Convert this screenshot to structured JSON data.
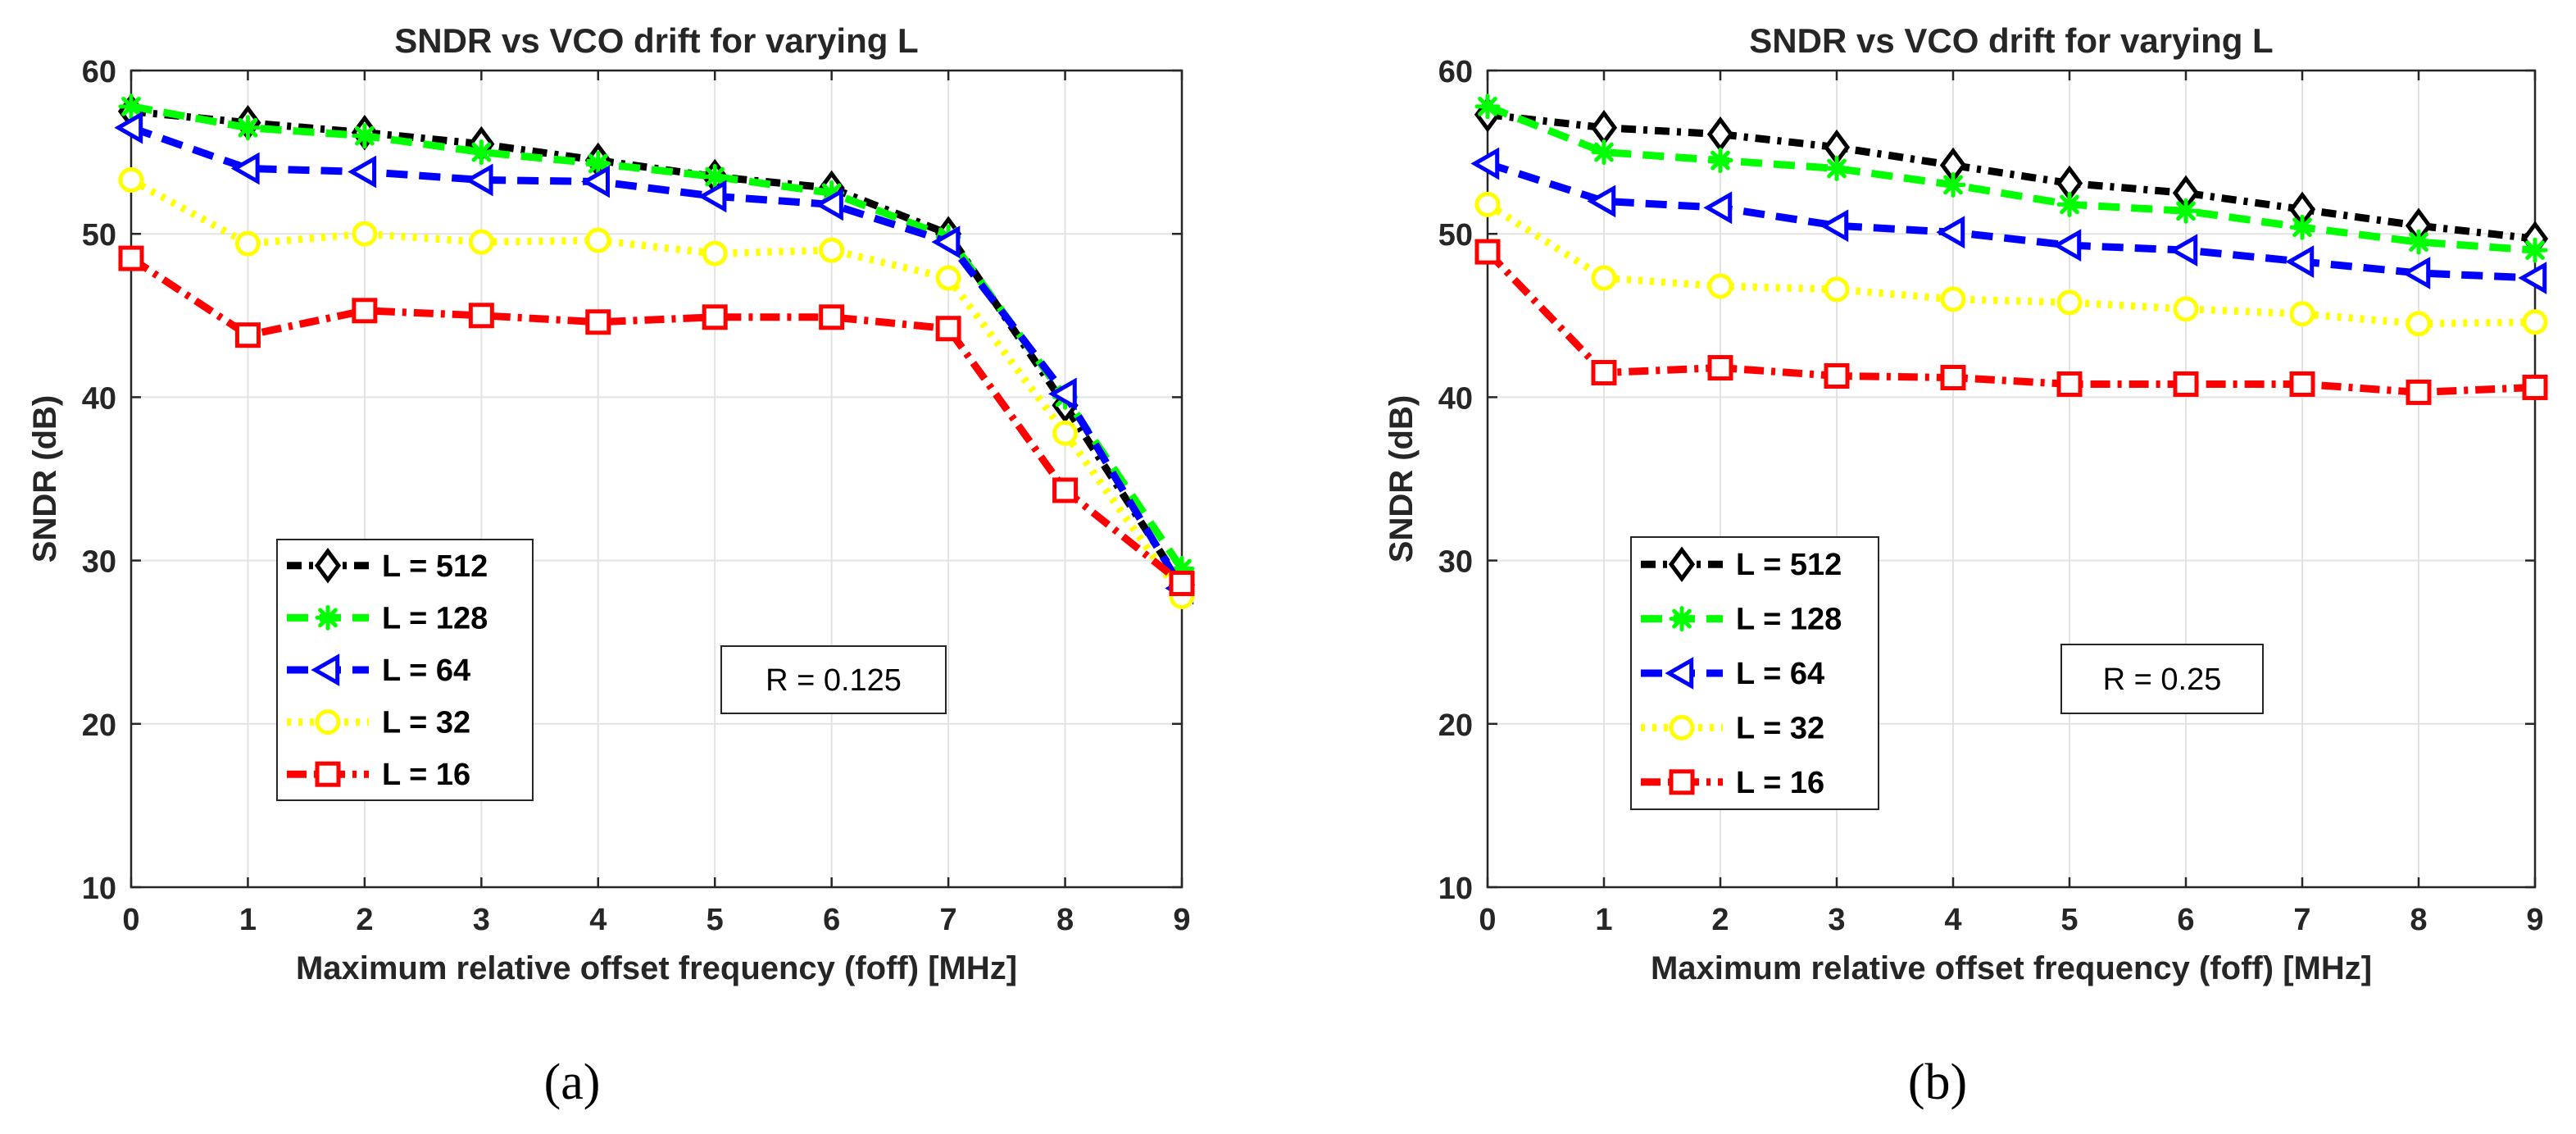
{
  "chart_data": [
    {
      "type": "line",
      "panel_label": "(a)",
      "title": "SNDR vs VCO drift for varying L",
      "xlabel": "Maximum relative offset frequency (foff) [MHz]",
      "ylabel": "SNDR (dB)",
      "xlim": [
        0,
        9
      ],
      "ylim": [
        10,
        60
      ],
      "xticks": [
        0,
        1,
        2,
        3,
        4,
        5,
        6,
        7,
        8,
        9
      ],
      "yticks": [
        10,
        20,
        30,
        40,
        50,
        60
      ],
      "grid": true,
      "legend_position": "lower-left",
      "annotation": "R = 0.125",
      "x": [
        0,
        1,
        2,
        3,
        4,
        5,
        6,
        7,
        8,
        9
      ],
      "series": [
        {
          "name": "L = 512",
          "color": "#000000",
          "marker": "diamond",
          "values": [
            57.5,
            56.8,
            56.2,
            55.5,
            54.5,
            53.5,
            52.8,
            50.0,
            39.5,
            28.5
          ]
        },
        {
          "name": "L = 128",
          "color": "#00ff00",
          "marker": "asterisk",
          "values": [
            57.8,
            56.5,
            56.0,
            55.0,
            54.3,
            53.5,
            52.5,
            49.8,
            40.0,
            29.5
          ]
        },
        {
          "name": "L = 64",
          "color": "#0000ff",
          "marker": "triangle-left",
          "values": [
            56.5,
            54.0,
            53.8,
            53.3,
            53.2,
            52.3,
            51.8,
            49.5,
            40.2,
            28.3
          ]
        },
        {
          "name": "L = 32",
          "color": "#ffff00",
          "marker": "circle",
          "values": [
            53.3,
            49.4,
            50.0,
            49.5,
            49.6,
            48.8,
            49.0,
            47.3,
            37.8,
            27.8
          ]
        },
        {
          "name": "L = 16",
          "color": "#ff0000",
          "marker": "square",
          "values": [
            48.5,
            43.8,
            45.3,
            45.0,
            44.6,
            44.9,
            44.9,
            44.2,
            34.3,
            28.6
          ]
        }
      ]
    },
    {
      "type": "line",
      "panel_label": "(b)",
      "title": "SNDR vs VCO drift for varying L",
      "xlabel": "Maximum relative offset frequency (foff) [MHz]",
      "ylabel": "SNDR (dB)",
      "xlim": [
        0,
        9
      ],
      "ylim": [
        10,
        60
      ],
      "xticks": [
        0,
        1,
        2,
        3,
        4,
        5,
        6,
        7,
        8,
        9
      ],
      "yticks": [
        10,
        20,
        30,
        40,
        50,
        60
      ],
      "grid": true,
      "legend_position": "lower-left",
      "annotation": "R = 0.25",
      "x": [
        0,
        1,
        2,
        3,
        4,
        5,
        6,
        7,
        8,
        9
      ],
      "series": [
        {
          "name": "L = 512",
          "color": "#000000",
          "marker": "diamond",
          "values": [
            57.3,
            56.5,
            56.1,
            55.3,
            54.2,
            53.1,
            52.5,
            51.5,
            50.5,
            49.7
          ]
        },
        {
          "name": "L = 128",
          "color": "#00ff00",
          "marker": "asterisk",
          "values": [
            57.8,
            55.0,
            54.5,
            54.0,
            53.0,
            51.8,
            51.4,
            50.4,
            49.5,
            49.0
          ]
        },
        {
          "name": "L = 64",
          "color": "#0000ff",
          "marker": "triangle-left",
          "values": [
            54.3,
            52.0,
            51.6,
            50.5,
            50.1,
            49.3,
            49.0,
            48.3,
            47.6,
            47.3
          ]
        },
        {
          "name": "L = 32",
          "color": "#ffff00",
          "marker": "circle",
          "values": [
            51.8,
            47.3,
            46.8,
            46.6,
            46.0,
            45.8,
            45.4,
            45.1,
            44.5,
            44.6
          ]
        },
        {
          "name": "L = 16",
          "color": "#ff0000",
          "marker": "square",
          "values": [
            48.9,
            41.5,
            41.8,
            41.3,
            41.2,
            40.8,
            40.8,
            40.8,
            40.3,
            40.6
          ]
        }
      ]
    }
  ]
}
